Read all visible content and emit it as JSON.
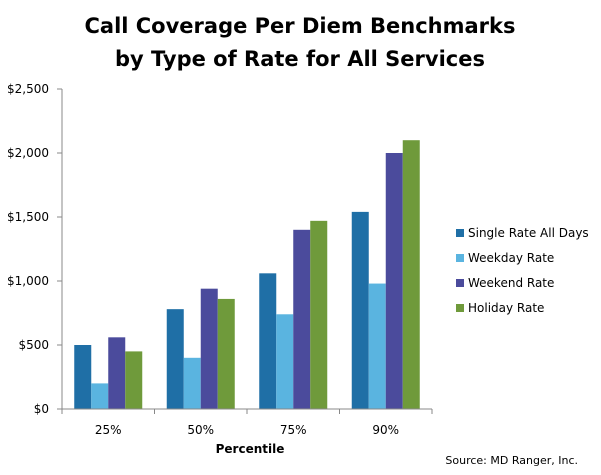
{
  "chart_data": {
    "type": "bar",
    "title": [
      "Call Coverage Per Diem Benchmarks",
      "by Type of Rate for All Services"
    ],
    "xlabel": "Percentile",
    "ylabel": "",
    "categories": [
      "25%",
      "50%",
      "75%",
      "90%"
    ],
    "ylim": [
      0,
      2500
    ],
    "yticks": [
      "$0",
      "$500",
      "$1,000",
      "$1,500",
      "$2,000",
      "$2,500"
    ],
    "ytick_values": [
      0,
      500,
      1000,
      1500,
      2000,
      2500
    ],
    "grid": false,
    "legend_position": "right",
    "series": [
      {
        "name": "Single Rate All Days",
        "color": "#1f6fa6",
        "values": [
          500,
          780,
          1060,
          1540
        ]
      },
      {
        "name": "Weekday Rate",
        "color": "#5ab4e0",
        "values": [
          200,
          400,
          740,
          980
        ]
      },
      {
        "name": "Weekend Rate",
        "color": "#4b4b9c",
        "values": [
          560,
          940,
          1400,
          2000
        ]
      },
      {
        "name": "Holiday Rate",
        "color": "#6f9a3b",
        "values": [
          450,
          860,
          1470,
          2100
        ]
      }
    ],
    "source": "Source: MD Ranger, Inc."
  }
}
